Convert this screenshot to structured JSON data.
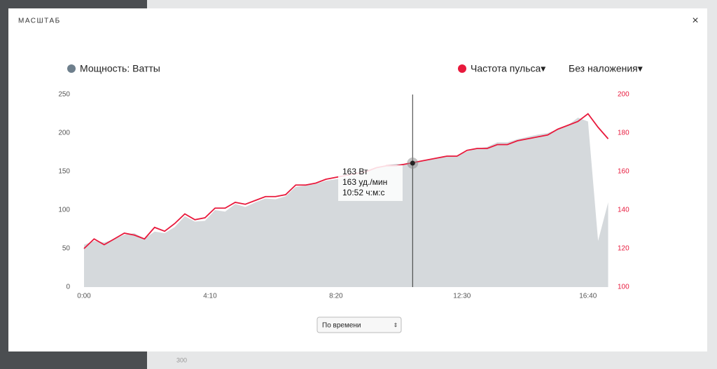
{
  "background": {
    "label": "300"
  },
  "modal": {
    "title": "МАСШТАБ",
    "close": "×",
    "select": "По времени"
  },
  "chart_data": {
    "type": "area-line",
    "power_legend": "Мощность: Ватты",
    "overlay": "Без наложения▾",
    "x": [
      0,
      20,
      40,
      60,
      80,
      100,
      120,
      140,
      160,
      180,
      200,
      220,
      240,
      260,
      280,
      300,
      320,
      340,
      360,
      380,
      400,
      420,
      440,
      460,
      480,
      500,
      520,
      540,
      560,
      580,
      600,
      620,
      640,
      660,
      680,
      700,
      720,
      740,
      760,
      780,
      800,
      820,
      840,
      860,
      880,
      900,
      920,
      940,
      960,
      980,
      1000,
      1020,
      1040
    ],
    "series": [
      {
        "name": "Мощность",
        "color": "#d5d9dc",
        "legend_color": "#6e7f8c",
        "values": [
          55,
          60,
          58,
          62,
          68,
          70,
          63,
          72,
          70,
          78,
          92,
          85,
          86,
          100,
          98,
          108,
          104,
          110,
          115,
          114,
          118,
          130,
          132,
          134,
          138,
          140,
          142,
          146,
          150,
          155,
          158,
          160,
          160,
          162,
          165,
          168,
          170,
          170,
          176,
          180,
          182,
          188,
          188,
          192,
          195,
          198,
          200,
          205,
          210,
          220,
          215,
          60,
          110
        ]
      },
      {
        "name": "Частота пульса▾",
        "color": "#e8193c",
        "axis": "y2",
        "values": [
          120,
          125,
          122,
          125,
          128,
          127,
          125,
          131,
          129,
          133,
          138,
          135,
          136,
          141,
          141,
          144,
          143,
          145,
          147,
          147,
          148,
          153,
          153,
          154,
          156,
          157,
          158,
          159,
          160,
          162,
          163,
          163,
          164,
          165,
          166,
          167,
          168,
          168,
          171,
          172,
          172,
          174,
          174,
          176,
          177,
          178,
          179,
          182,
          184,
          186,
          190,
          183,
          177
        ]
      }
    ],
    "xlim": [
      0,
      1042
    ],
    "xticks": [
      {
        "value": 0,
        "label": "0:00"
      },
      {
        "value": 250,
        "label": "4:10"
      },
      {
        "value": 500,
        "label": "8:20"
      },
      {
        "value": 750,
        "label": "12:30"
      },
      {
        "value": 1000,
        "label": "16:40"
      }
    ],
    "ylim": [
      0,
      250
    ],
    "yticks": [
      0,
      50,
      100,
      150,
      200,
      250
    ],
    "y2lim": [
      100,
      200
    ],
    "y2ticks": [
      100,
      120,
      140,
      160,
      180,
      200
    ],
    "cursor": 652,
    "tooltip": [
      "163 Вт",
      "163 уд./мин",
      "10:52 ч:м:с"
    ]
  }
}
